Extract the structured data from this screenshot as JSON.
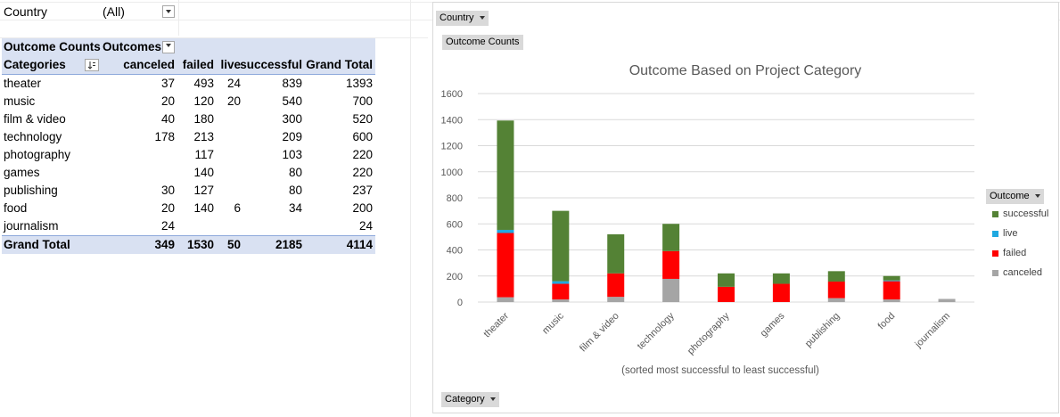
{
  "filter": {
    "label": "Country",
    "value": "(All)"
  },
  "pivot": {
    "corner_label": "Outcome Counts",
    "columns_label": "Outcomes",
    "rows_label": "Categories",
    "headers": [
      "canceled",
      "failed",
      "live",
      "successful",
      "Grand Total"
    ],
    "rows": [
      {
        "name": "theater",
        "canceled": "37",
        "failed": "493",
        "live": "24",
        "successful": "839",
        "total": "1393"
      },
      {
        "name": "music",
        "canceled": "20",
        "failed": "120",
        "live": "20",
        "successful": "540",
        "total": "700"
      },
      {
        "name": "film & video",
        "canceled": "40",
        "failed": "180",
        "live": "",
        "successful": "300",
        "total": "520"
      },
      {
        "name": "technology",
        "canceled": "178",
        "failed": "213",
        "live": "",
        "successful": "209",
        "total": "600"
      },
      {
        "name": "photography",
        "canceled": "",
        "failed": "117",
        "live": "",
        "successful": "103",
        "total": "220"
      },
      {
        "name": "games",
        "canceled": "",
        "failed": "140",
        "live": "",
        "successful": "80",
        "total": "220"
      },
      {
        "name": "publishing",
        "canceled": "30",
        "failed": "127",
        "live": "",
        "successful": "80",
        "total": "237"
      },
      {
        "name": "food",
        "canceled": "20",
        "failed": "140",
        "live": "6",
        "successful": "34",
        "total": "200"
      },
      {
        "name": "journalism",
        "canceled": "24",
        "failed": "",
        "live": "",
        "successful": "",
        "total": "24"
      }
    ],
    "grand_total": {
      "name": "Grand Total",
      "canceled": "349",
      "failed": "1530",
      "live": "50",
      "successful": "2185",
      "total": "4114"
    }
  },
  "chart_buttons": {
    "country": "Country",
    "values": "Outcome Counts",
    "legend": "Outcome",
    "category": "Category"
  },
  "chart_data": {
    "type": "bar",
    "stacked": true,
    "title": "Outcome Based on Project Category",
    "xlabel": "(sorted most successful to least successful)",
    "ylabel": "",
    "ylim": [
      0,
      1600
    ],
    "yticks": [
      0,
      200,
      400,
      600,
      800,
      1000,
      1200,
      1400,
      1600
    ],
    "grid": true,
    "legend_position": "right",
    "categories": [
      "theater",
      "music",
      "film & video",
      "technology",
      "photography",
      "games",
      "publishing",
      "food",
      "journalism"
    ],
    "series": [
      {
        "name": "canceled",
        "color": "#a5a5a5",
        "values": [
          37,
          20,
          40,
          178,
          0,
          0,
          30,
          20,
          24
        ]
      },
      {
        "name": "failed",
        "color": "#ff0000",
        "values": [
          493,
          120,
          180,
          213,
          117,
          140,
          127,
          140,
          0
        ]
      },
      {
        "name": "live",
        "color": "#1fa8e0",
        "values": [
          24,
          20,
          0,
          0,
          0,
          0,
          0,
          6,
          0
        ]
      },
      {
        "name": "successful",
        "color": "#548235",
        "values": [
          839,
          540,
          300,
          209,
          103,
          80,
          80,
          34,
          0
        ]
      }
    ],
    "legend_order": [
      "successful",
      "live",
      "failed",
      "canceled"
    ]
  },
  "colors": {
    "header_band": "#d9e1f2",
    "button_gray": "#d9d9d9"
  }
}
